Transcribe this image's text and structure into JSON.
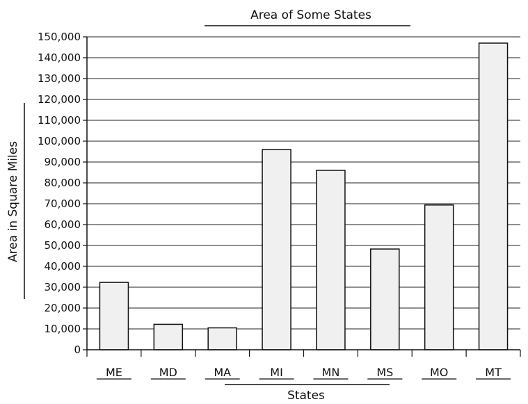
{
  "chart_data": {
    "type": "bar",
    "title": "Area of Some States",
    "xlabel": "States",
    "ylabel": "Area in Square Miles",
    "categories": [
      "ME",
      "MD",
      "MA",
      "MI",
      "MN",
      "MS",
      "MO",
      "MT"
    ],
    "values": [
      32300,
      12200,
      10500,
      96000,
      86000,
      48300,
      69400,
      147000
    ],
    "ylim": [
      0,
      150000
    ],
    "yticks": [
      0,
      10000,
      20000,
      30000,
      40000,
      50000,
      60000,
      70000,
      80000,
      90000,
      100000,
      110000,
      120000,
      130000,
      140000,
      150000
    ],
    "ytick_labels": [
      "0",
      "10,000",
      "20,000",
      "30,000",
      "40,000",
      "50,000",
      "60,000",
      "70,000",
      "80,000",
      "90,000",
      "100,000",
      "110,000",
      "120,000",
      "130,000",
      "140,000",
      "150,000"
    ],
    "grid": true,
    "bar_color": "#f0f0f0",
    "bar_edge_color": "#111111"
  }
}
